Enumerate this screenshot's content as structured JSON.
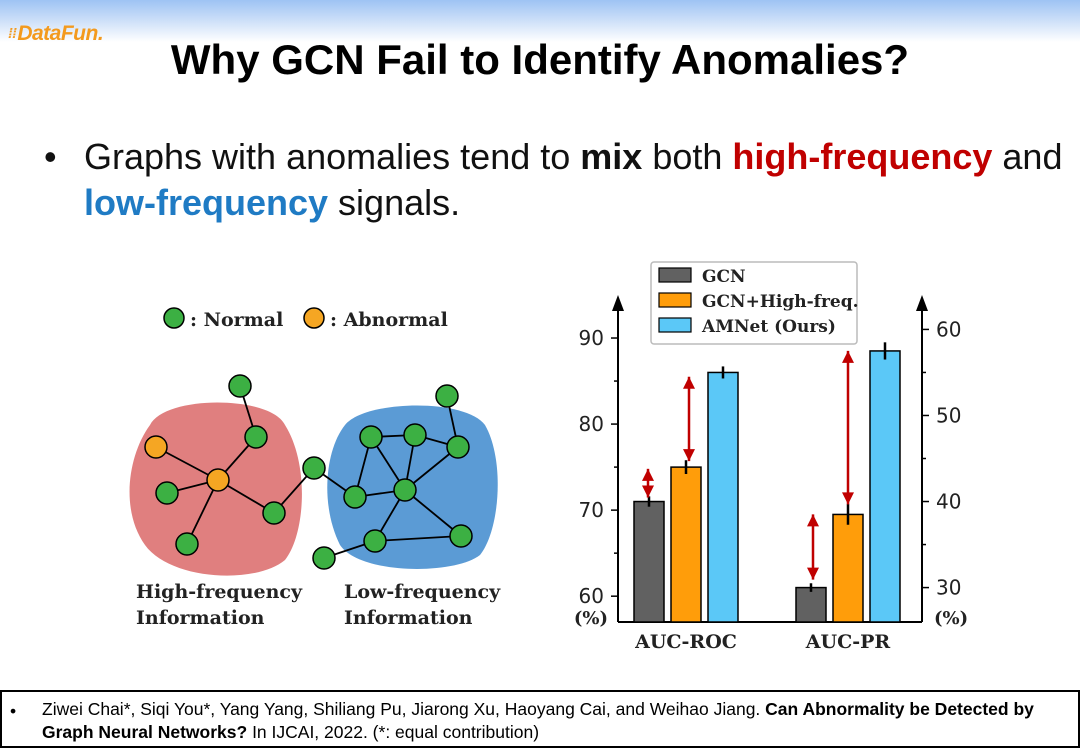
{
  "logo": {
    "dots": "⁞⁞",
    "text": "DataFun."
  },
  "title": "Why GCN Fail to Identify Anomalies?",
  "bullet": {
    "marker": "•",
    "part1": "Graphs with anomalies tend to ",
    "mix": "mix",
    "part2": " both ",
    "high": "high-frequency",
    "part3": " and ",
    "low": "low-frequency",
    "part4": " signals."
  },
  "diagram": {
    "legend_normal": ": Normal",
    "legend_abnormal": ": Abnormal",
    "caption_high_1": "High-frequency",
    "caption_high_2": "Information",
    "caption_low_1": "Low-frequency",
    "caption_low_2": "Information",
    "colors": {
      "normal": "#3cb043",
      "abnormal": "#f5a623",
      "high_region": "#e07f7f",
      "low_region": "#5b9bd5"
    }
  },
  "chart_data": {
    "type": "bar",
    "categories": [
      "AUC-ROC",
      "AUC-PR"
    ],
    "series": [
      {
        "name": "GCN",
        "values": [
          71,
          30.0
        ],
        "error": [
          0.6,
          0.5
        ],
        "color": "#616161"
      },
      {
        "name": "GCN+High-freq.",
        "values": [
          75,
          38.5
        ],
        "error": [
          0.8,
          1.2
        ],
        "color": "#ff9d0a"
      },
      {
        "name": "AMNet (Ours)",
        "values": [
          86,
          57.5
        ],
        "error": [
          0.7,
          1.0
        ],
        "color": "#5bc8f7"
      }
    ],
    "left_axis": {
      "applies_to": "AUC-ROC",
      "ylim": [
        57,
        95
      ],
      "ticks": [
        60,
        70,
        80,
        90
      ],
      "unit_label": "(%)"
    },
    "right_axis": {
      "applies_to": "AUC-PR",
      "ylim": [
        26,
        64
      ],
      "ticks": [
        30,
        40,
        50,
        60
      ],
      "unit_label": "(%)"
    },
    "legend_position": "top-left"
  },
  "footer": {
    "marker": "•",
    "authors": "Ziwei Chai*, Siqi You*, Yang Yang, Shiliang Pu, Jiarong Xu, Haoyang Cai, and Weihao Jiang. ",
    "paper_title": "Can Abnormality be Detected by Graph Neural Networks?",
    "venue": " In IJCAI, 2022. (*: equal contribution)"
  }
}
